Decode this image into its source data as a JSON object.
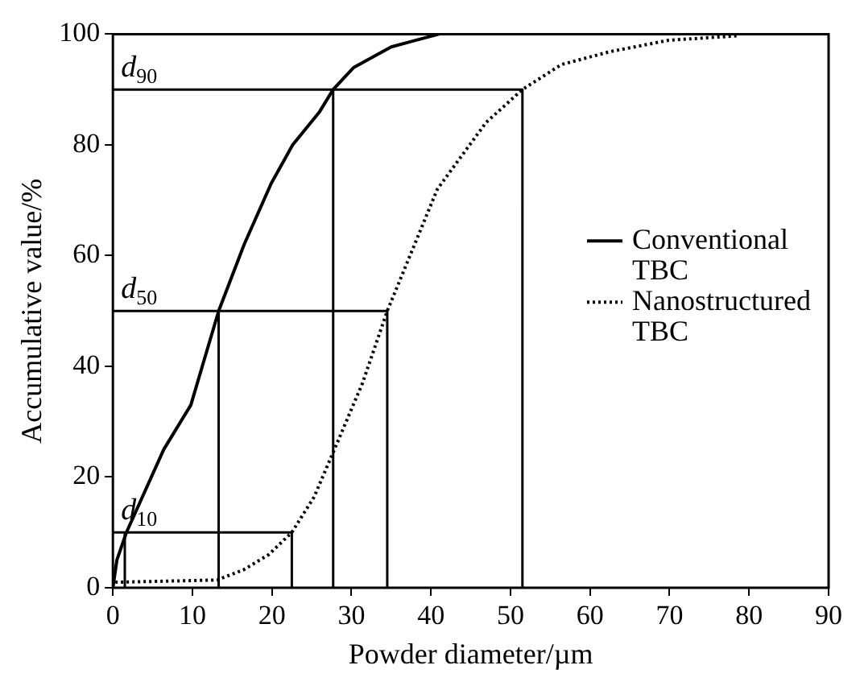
{
  "chart_data": {
    "type": "line",
    "xlabel": "Powder diameter/µm",
    "ylabel": "Accumulative value/%",
    "xlim": [
      0,
      90
    ],
    "xticks": [
      0,
      10,
      20,
      30,
      40,
      50,
      60,
      70,
      80,
      90
    ],
    "ylim": [
      0,
      100
    ],
    "yticks": [
      0,
      20,
      40,
      60,
      80,
      100
    ],
    "grid": false,
    "legend": "right",
    "marker": "none",
    "series": [
      {
        "name": "Conventional TBC",
        "color": "#000000",
        "line_style": "solid",
        "x": [
          0,
          0.5,
          1.7,
          6.4,
          9.8,
          13.3,
          16.5,
          19.9,
          22.6,
          26,
          27.7,
          30.3,
          35,
          41
        ],
        "values": [
          0,
          5,
          10,
          25,
          33,
          50,
          62,
          73,
          80,
          86,
          90,
          94,
          97.7,
          100
        ]
      },
      {
        "name": "Nanostructured TBC",
        "color": "#000000",
        "line_style": "dotted",
        "x": [
          0.3,
          13.1,
          16.5,
          19.6,
          22.5,
          25.3,
          27.8,
          31.4,
          34.5,
          40.8,
          46.9,
          51.5,
          56.4,
          62.4,
          69.9,
          78.6
        ],
        "values": [
          1,
          1.4,
          3.3,
          6,
          10,
          16.4,
          24.8,
          37,
          50,
          72,
          84,
          90,
          94.5,
          96.8,
          98.9,
          99.7
        ]
      },
      {
        "color": "#000000",
        "line_style": "solid",
        "x": [
          0,
          22.5,
          22.5
        ],
        "values": [
          10,
          10,
          0
        ]
      },
      {
        "color": "#000000",
        "line_style": "solid",
        "x": [
          1.5,
          1.5
        ],
        "values": [
          10,
          0
        ]
      },
      {
        "color": "#000000",
        "line_style": "solid",
        "x": [
          0,
          34.5,
          34.5
        ],
        "values": [
          50,
          50,
          0
        ]
      },
      {
        "color": "#000000",
        "line_style": "solid",
        "x": [
          13.3,
          13.3
        ],
        "values": [
          50,
          0
        ]
      },
      {
        "color": "#000000",
        "line_style": "solid",
        "x": [
          0,
          51.5,
          51.5
        ],
        "values": [
          90,
          90,
          0
        ]
      },
      {
        "color": "#000000",
        "line_style": "solid",
        "x": [
          27.7,
          27.7
        ],
        "values": [
          90,
          0
        ]
      }
    ],
    "annotations": [
      {
        "text": "d$_{10}$",
        "y": 10
      },
      {
        "text": "d$_{50}$",
        "y": 50
      },
      {
        "text": "d$_{90}$",
        "y": 90
      }
    ]
  }
}
